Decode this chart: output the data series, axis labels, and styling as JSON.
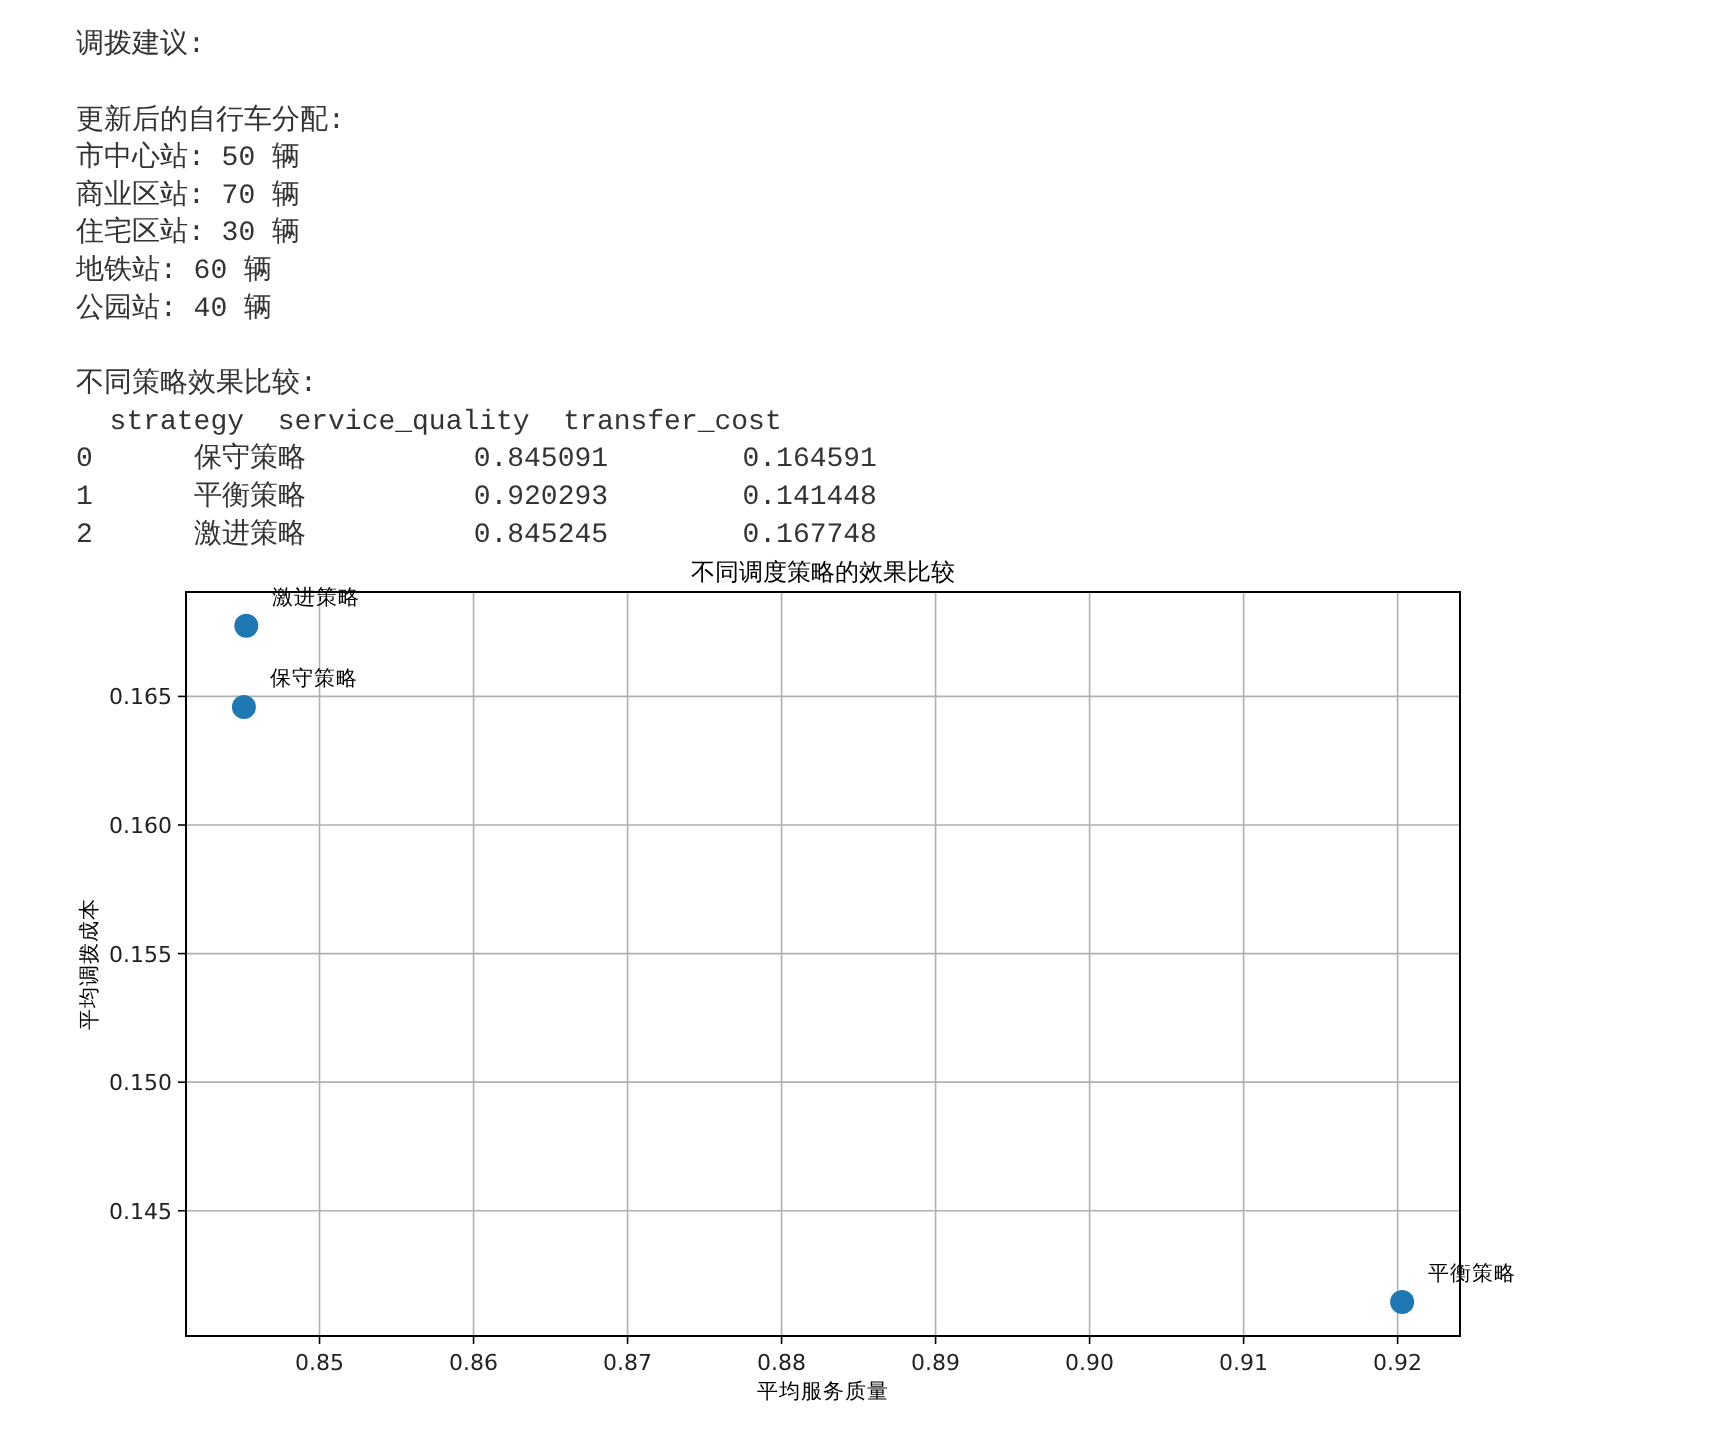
{
  "chart_data": {
    "type": "scatter",
    "title": "不同调度策略的效果比较",
    "xlabel": "平均服务质量",
    "ylabel": "平均调拨成本",
    "series": [
      {
        "name": "保守策略",
        "color": "#1f77b4",
        "x": [
          0.845091
        ],
        "values": [
          0.164591
        ]
      },
      {
        "name": "平衡策略",
        "color": "#1f77b4",
        "x": [
          0.920293
        ],
        "values": [
          0.141448
        ]
      },
      {
        "name": "激进策略",
        "color": "#1f77b4",
        "x": [
          0.845245
        ],
        "values": [
          0.167748
        ]
      }
    ],
    "xlim": [
      0.84133,
      0.92405
    ],
    "ylim": [
      0.14013,
      0.16906
    ],
    "xticks": [
      0.85,
      0.86,
      0.87,
      0.88,
      0.89,
      {
        "value": 0.9,
        "label": "0.90"
      },
      0.91,
      0.92
    ],
    "yticks": [
      0.145,
      {
        "value": 0.15,
        "label": "0.150"
      },
      0.155,
      {
        "value": 0.16,
        "label": "0.160"
      },
      0.165
    ],
    "grid": true,
    "marker": "circle",
    "annotations": [
      "调拨建议:",
      "更新后的自行车分配:",
      "市中心站: 50 辆",
      "商业区站: 70 辆",
      "住宅区站: 30 辆",
      "地铁站: 60 辆",
      "公园站: 40 辆",
      "不同策略效果比较:",
      "  strategy  service_quality  transfer_cost",
      "0      保守策略          0.845091        0.164591",
      "1      平衡策略          0.920293        0.141448",
      "2      激进策略          0.845245        0.167748"
    ]
  }
}
